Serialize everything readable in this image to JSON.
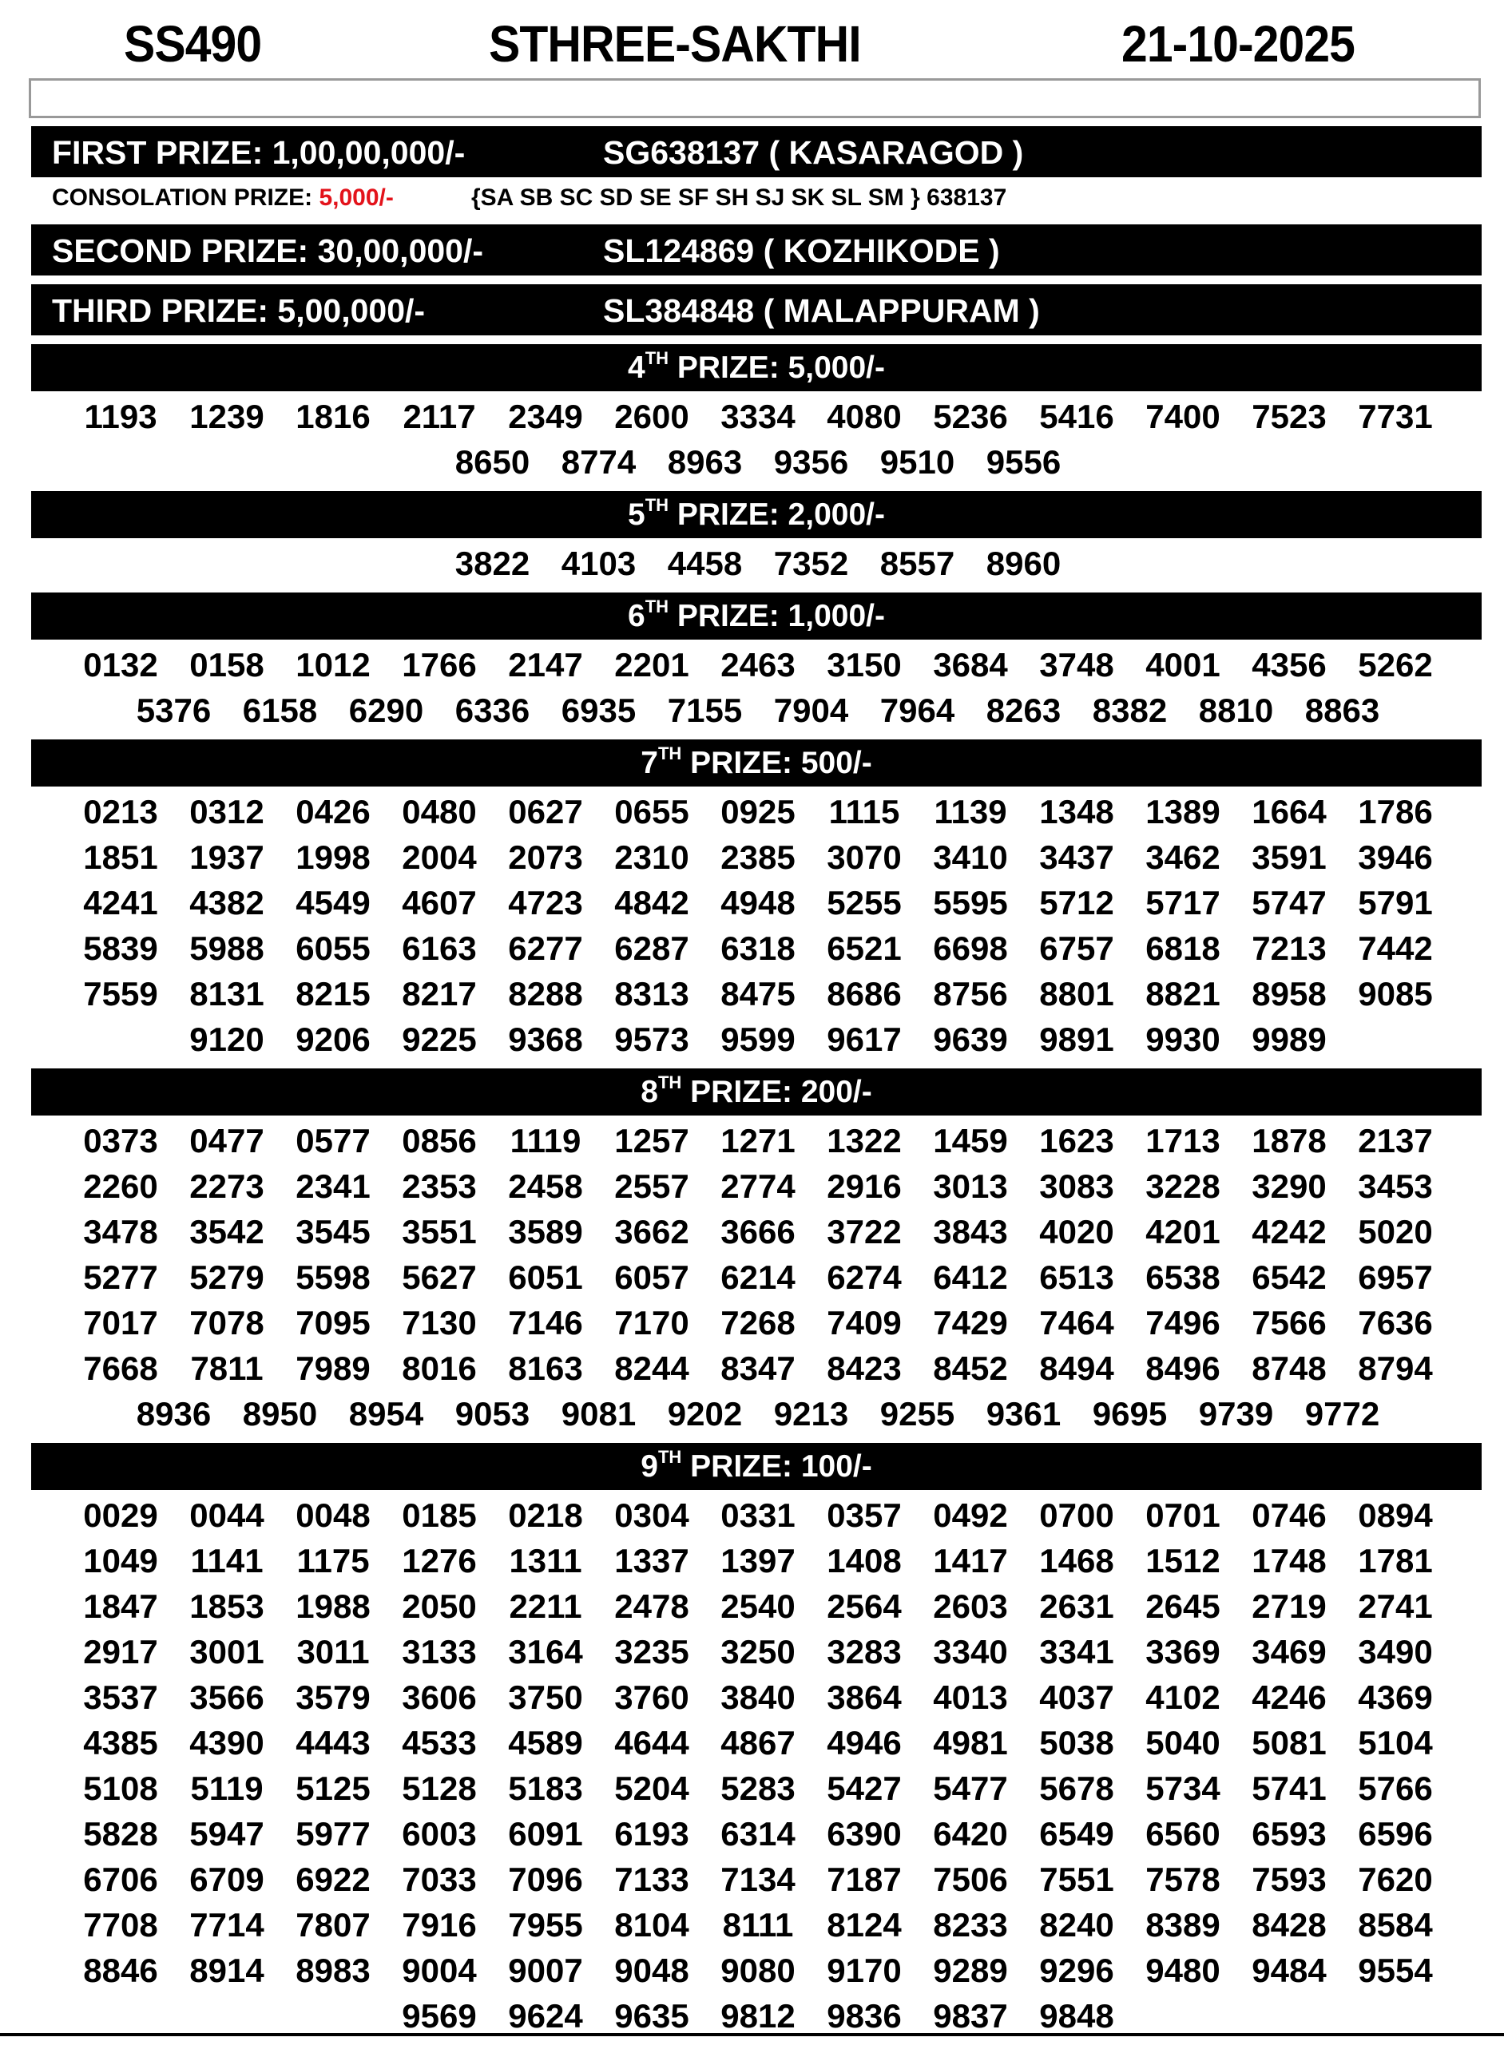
{
  "header": {
    "draw_code": "SS490",
    "lottery_name": "STHREE-SAKTHI",
    "date": "21-10-2025"
  },
  "top_prizes": [
    {
      "label": "FIRST PRIZE: 1,00,00,000/-",
      "ticket": "SG638137 ( KASARAGOD )"
    },
    {
      "label": "SECOND PRIZE: 30,00,000/-",
      "ticket": "SL124869 ( KOZHIKODE )"
    },
    {
      "label": "THIRD PRIZE: 5,00,000/-",
      "ticket": "SL384848 ( MALAPPURAM )"
    }
  ],
  "consolation": {
    "label": "CONSOLATION PRIZE: ",
    "amount": "5,000/-",
    "series": "{SA SB SC SD SE SF SH SJ SK SL SM } 638137",
    "amount_color": "#e3131b"
  },
  "sections": [
    {
      "ordinal": "4",
      "suffix": "TH",
      "label": " PRIZE: 5,000/-",
      "rows": [
        [
          "1193",
          "1239",
          "1816",
          "2117",
          "2349",
          "2600",
          "3334",
          "4080",
          "5236",
          "5416",
          "7400",
          "7523",
          "7731"
        ],
        [
          "8650",
          "8774",
          "8963",
          "9356",
          "9510",
          "9556"
        ]
      ]
    },
    {
      "ordinal": "5",
      "suffix": "TH",
      "label": " PRIZE: 2,000/-",
      "rows": [
        [
          "3822",
          "4103",
          "4458",
          "7352",
          "8557",
          "8960"
        ]
      ]
    },
    {
      "ordinal": "6",
      "suffix": "TH",
      "label": " PRIZE: 1,000/-",
      "rows": [
        [
          "0132",
          "0158",
          "1012",
          "1766",
          "2147",
          "2201",
          "2463",
          "3150",
          "3684",
          "3748",
          "4001",
          "4356",
          "5262"
        ],
        [
          "5376",
          "6158",
          "6290",
          "6336",
          "6935",
          "7155",
          "7904",
          "7964",
          "8263",
          "8382",
          "8810",
          "8863"
        ]
      ]
    },
    {
      "ordinal": "7",
      "suffix": "TH",
      "label": " PRIZE: 500/-",
      "rows": [
        [
          "0213",
          "0312",
          "0426",
          "0480",
          "0627",
          "0655",
          "0925",
          "1115",
          "1139",
          "1348",
          "1389",
          "1664",
          "1786"
        ],
        [
          "1851",
          "1937",
          "1998",
          "2004",
          "2073",
          "2310",
          "2385",
          "3070",
          "3410",
          "3437",
          "3462",
          "3591",
          "3946"
        ],
        [
          "4241",
          "4382",
          "4549",
          "4607",
          "4723",
          "4842",
          "4948",
          "5255",
          "5595",
          "5712",
          "5717",
          "5747",
          "5791"
        ],
        [
          "5839",
          "5988",
          "6055",
          "6163",
          "6277",
          "6287",
          "6318",
          "6521",
          "6698",
          "6757",
          "6818",
          "7213",
          "7442"
        ],
        [
          "7559",
          "8131",
          "8215",
          "8217",
          "8288",
          "8313",
          "8475",
          "8686",
          "8756",
          "8801",
          "8821",
          "8958",
          "9085"
        ],
        [
          "9120",
          "9206",
          "9225",
          "9368",
          "9573",
          "9599",
          "9617",
          "9639",
          "9891",
          "9930",
          "9989"
        ]
      ]
    },
    {
      "ordinal": "8",
      "suffix": "TH",
      "label": " PRIZE: 200/-",
      "rows": [
        [
          "0373",
          "0477",
          "0577",
          "0856",
          "1119",
          "1257",
          "1271",
          "1322",
          "1459",
          "1623",
          "1713",
          "1878",
          "2137"
        ],
        [
          "2260",
          "2273",
          "2341",
          "2353",
          "2458",
          "2557",
          "2774",
          "2916",
          "3013",
          "3083",
          "3228",
          "3290",
          "3453"
        ],
        [
          "3478",
          "3542",
          "3545",
          "3551",
          "3589",
          "3662",
          "3666",
          "3722",
          "3843",
          "4020",
          "4201",
          "4242",
          "5020"
        ],
        [
          "5277",
          "5279",
          "5598",
          "5627",
          "6051",
          "6057",
          "6214",
          "6274",
          "6412",
          "6513",
          "6538",
          "6542",
          "6957"
        ],
        [
          "7017",
          "7078",
          "7095",
          "7130",
          "7146",
          "7170",
          "7268",
          "7409",
          "7429",
          "7464",
          "7496",
          "7566",
          "7636"
        ],
        [
          "7668",
          "7811",
          "7989",
          "8016",
          "8163",
          "8244",
          "8347",
          "8423",
          "8452",
          "8494",
          "8496",
          "8748",
          "8794"
        ],
        [
          "8936",
          "8950",
          "8954",
          "9053",
          "9081",
          "9202",
          "9213",
          "9255",
          "9361",
          "9695",
          "9739",
          "9772"
        ]
      ]
    },
    {
      "ordinal": "9",
      "suffix": "TH",
      "label": " PRIZE: 100/-",
      "rows": [
        [
          "0029",
          "0044",
          "0048",
          "0185",
          "0218",
          "0304",
          "0331",
          "0357",
          "0492",
          "0700",
          "0701",
          "0746",
          "0894"
        ],
        [
          "1049",
          "1141",
          "1175",
          "1276",
          "1311",
          "1337",
          "1397",
          "1408",
          "1417",
          "1468",
          "1512",
          "1748",
          "1781"
        ],
        [
          "1847",
          "1853",
          "1988",
          "2050",
          "2211",
          "2478",
          "2540",
          "2564",
          "2603",
          "2631",
          "2645",
          "2719",
          "2741"
        ],
        [
          "2917",
          "3001",
          "3011",
          "3133",
          "3164",
          "3235",
          "3250",
          "3283",
          "3340",
          "3341",
          "3369",
          "3469",
          "3490"
        ],
        [
          "3537",
          "3566",
          "3579",
          "3606",
          "3750",
          "3760",
          "3840",
          "3864",
          "4013",
          "4037",
          "4102",
          "4246",
          "4369"
        ],
        [
          "4385",
          "4390",
          "4443",
          "4533",
          "4589",
          "4644",
          "4867",
          "4946",
          "4981",
          "5038",
          "5040",
          "5081",
          "5104"
        ],
        [
          "5108",
          "5119",
          "5125",
          "5128",
          "5183",
          "5204",
          "5283",
          "5427",
          "5477",
          "5678",
          "5734",
          "5741",
          "5766"
        ],
        [
          "5828",
          "5947",
          "5977",
          "6003",
          "6091",
          "6193",
          "6314",
          "6390",
          "6420",
          "6549",
          "6560",
          "6593",
          "6596"
        ],
        [
          "6706",
          "6709",
          "6922",
          "7033",
          "7096",
          "7133",
          "7134",
          "7187",
          "7506",
          "7551",
          "7578",
          "7593",
          "7620"
        ],
        [
          "7708",
          "7714",
          "7807",
          "7916",
          "7955",
          "8104",
          "8111",
          "8124",
          "8233",
          "8240",
          "8389",
          "8428",
          "8584"
        ],
        [
          "8846",
          "8914",
          "8983",
          "9004",
          "9007",
          "9048",
          "9080",
          "9170",
          "9289",
          "9296",
          "9480",
          "9484",
          "9554"
        ],
        [
          "9569",
          "9624",
          "9635",
          "9812",
          "9836",
          "9837",
          "9848"
        ]
      ]
    }
  ]
}
